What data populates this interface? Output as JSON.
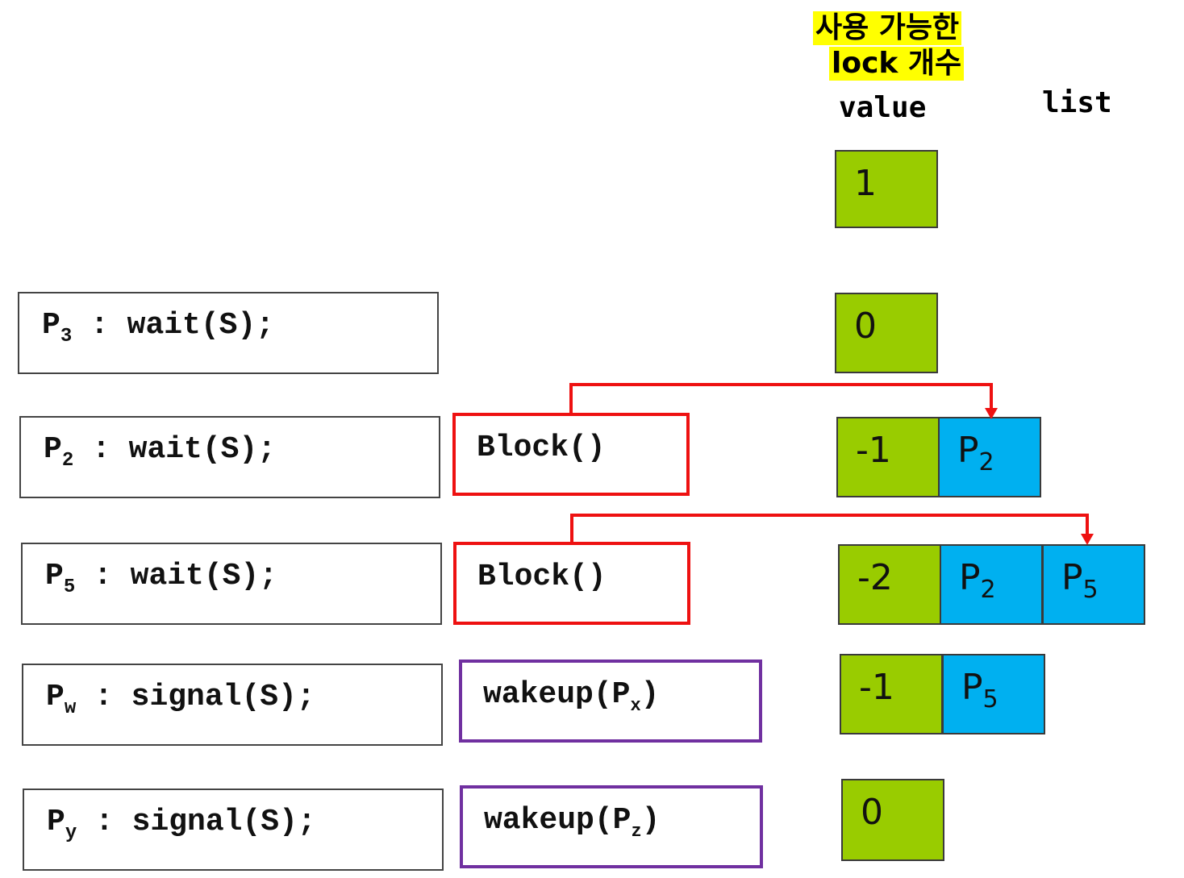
{
  "header": {
    "value_meaning_line1": "사용 가능한",
    "value_meaning_line2": "lock 개수",
    "value_column": "value",
    "list_column": "list"
  },
  "initial_value": "1",
  "rows": [
    {
      "process": "P",
      "process_sub": "3",
      "call": ": wait(S);",
      "action": null,
      "semaphore_value": "0",
      "list": []
    },
    {
      "process": "P",
      "process_sub": "2",
      "call": ": wait(S);",
      "action": {
        "name": "Block()",
        "arg": "",
        "arg_sub": "",
        "kind": "block"
      },
      "semaphore_value": "-1",
      "list": [
        {
          "p": "P",
          "sub": "2"
        }
      ]
    },
    {
      "process": "P",
      "process_sub": "5",
      "call": ": wait(S);",
      "action": {
        "name": "Block()",
        "arg": "",
        "arg_sub": "",
        "kind": "block"
      },
      "semaphore_value": "-2",
      "list": [
        {
          "p": "P",
          "sub": "2"
        },
        {
          "p": "P",
          "sub": "5"
        }
      ]
    },
    {
      "process": "P",
      "process_sub": "w",
      "call": ": signal(S);",
      "action": {
        "name": "wakeup(",
        "arg": "P",
        "arg_sub": "x",
        "close": ")",
        "kind": "wakeup"
      },
      "semaphore_value": "-1",
      "list": [
        {
          "p": "P",
          "sub": "5"
        }
      ]
    },
    {
      "process": "P",
      "process_sub": "y",
      "call": ": signal(S);",
      "action": {
        "name": "wakeup(",
        "arg": "P",
        "arg_sub": "z",
        "close": ")",
        "kind": "wakeup"
      },
      "semaphore_value": "0",
      "list": []
    }
  ],
  "colors": {
    "value_cell": "#99cc00",
    "list_cell": "#00b0f0",
    "block_border": "#ee1111",
    "wakeup_border": "#7030a0",
    "highlight": "#ffff00",
    "arrow": "#ee1111"
  }
}
